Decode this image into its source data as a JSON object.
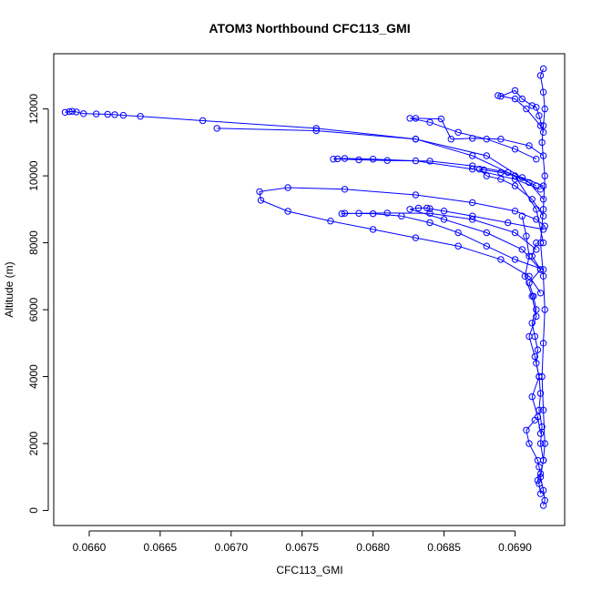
{
  "chart_data": {
    "type": "scatter",
    "title": "ATOM3 Northbound CFC113_GMI",
    "xlabel": "CFC113_GMI",
    "ylabel": "Altitude (m)",
    "xlim": [
      0.06575,
      0.06935
    ],
    "ylim": [
      -450,
      13650
    ],
    "x_ticks": [
      "0.0660",
      "0.0665",
      "0.0670",
      "0.0675",
      "0.0680",
      "0.0685",
      "0.0690"
    ],
    "y_ticks": [
      "0",
      "2000",
      "4000",
      "6000",
      "8000",
      "10000",
      "12000"
    ],
    "grid": false,
    "legend": "none",
    "color": "#0000ff",
    "marker": "open-circle",
    "connected": true,
    "series": [
      {
        "x": [
          0.06583,
          0.06586,
          0.06588,
          0.06591,
          0.06596,
          0.06605,
          0.06613,
          0.06618,
          0.06624,
          0.06636,
          0.0668,
          0.0676,
          0.0683,
          0.0687,
          0.069,
          0.06915,
          0.0692
        ],
        "y": [
          11900,
          11920,
          11930,
          11910,
          11860,
          11850,
          11840,
          11830,
          11810,
          11780,
          11650,
          11420,
          11100,
          10600,
          10000,
          9000,
          8000
        ]
      },
      {
        "x": [
          0.0692,
          0.0691,
          0.0688,
          0.0683,
          0.0676,
          0.0669
        ],
        "y": [
          9300,
          9800,
          10600,
          11100,
          11350,
          11420
        ]
      },
      {
        "x": [
          0.06921,
          0.06915,
          0.069,
          0.0687,
          0.0683,
          0.0678,
          0.0674,
          0.0672,
          0.06721,
          0.0674,
          0.0677,
          0.068,
          0.0683,
          0.0686,
          0.0689,
          0.0691,
          0.06918
        ],
        "y": [
          8500,
          8700,
          8950,
          9200,
          9430,
          9600,
          9650,
          9530,
          9270,
          8940,
          8650,
          8400,
          8150,
          7900,
          7500,
          7000,
          6500
        ]
      },
      {
        "x": [
          0.0692,
          0.069,
          0.0688,
          0.0686,
          0.0684,
          0.0682,
          0.068,
          0.0678,
          0.06778,
          0.0679,
          0.0681,
          0.0684,
          0.0687,
          0.069,
          0.06915
        ],
        "y": [
          7200,
          7500,
          7900,
          8300,
          8600,
          8800,
          8870,
          8880,
          8870,
          8880,
          8890,
          8880,
          8700,
          8300,
          7800
        ]
      },
      {
        "x": [
          0.0692,
          0.06895,
          0.0687,
          0.0685,
          0.0684,
          0.06838,
          0.06832,
          0.06826,
          0.0685,
          0.0688,
          0.06905,
          0.06918
        ],
        "y": [
          8400,
          8600,
          8800,
          8950,
          9020,
          9040,
          9040,
          9000,
          8700,
          8300,
          7800,
          7200
        ]
      },
      {
        "x": [
          0.06918,
          0.069,
          0.0687,
          0.0683,
          0.068,
          0.0678,
          0.06772,
          0.06775,
          0.0679,
          0.0681,
          0.0684,
          0.0687,
          0.06895,
          0.06915
        ],
        "y": [
          9600,
          9900,
          10200,
          10450,
          10500,
          10520,
          10500,
          10510,
          10480,
          10460,
          10440,
          10300,
          10100,
          9700
        ]
      },
      {
        "x": [
          0.0692,
          0.0691,
          0.0689,
          0.0687,
          0.06855,
          0.06848,
          0.0683,
          0.06826,
          0.0684,
          0.0686,
          0.0688,
          0.069,
          0.06915
        ],
        "y": [
          10600,
          10900,
          11100,
          11120,
          11100,
          11700,
          11720,
          11720,
          11600,
          11300,
          11100,
          10800,
          10500
        ]
      },
      {
        "x": [
          0.0692,
          0.06905,
          0.0689,
          0.06878,
          0.06875,
          0.0688,
          0.0689,
          0.069,
          0.06912,
          0.0692
        ],
        "y": [
          9700,
          9950,
          10100,
          10180,
          10200,
          10000,
          9900,
          9700,
          9300,
          8800
        ]
      },
      {
        "x": [
          0.06918,
          0.06908,
          0.069,
          0.06888,
          0.0689,
          0.069,
          0.06905,
          0.06912,
          0.06915,
          0.06917,
          0.0692
        ],
        "y": [
          11500,
          12000,
          12300,
          12400,
          12380,
          12550,
          12300,
          12100,
          12050,
          11800,
          11300
        ]
      },
      {
        "x": [
          0.0692,
          0.06918,
          0.0692,
          0.06921,
          0.0692,
          0.06919,
          0.06921,
          0.0692,
          0.06918,
          0.0692,
          0.06921,
          0.0692,
          0.06919,
          0.0692,
          0.06921,
          0.0692,
          0.06918,
          0.0692,
          0.06921,
          0.0692
        ],
        "y": [
          13200,
          13000,
          12500,
          12000,
          11500,
          11000,
          10000,
          9000,
          8000,
          7000,
          6000,
          5000,
          4000,
          3000,
          2000,
          1500,
          1000,
          600,
          300,
          150
        ]
      },
      {
        "x": [
          0.06915,
          0.06912,
          0.06918,
          0.0691,
          0.06913,
          0.06915,
          0.06912,
          0.06914,
          0.06916,
          0.06915,
          0.06917,
          0.06918,
          0.06917,
          0.06919,
          0.06918,
          0.0692
        ],
        "y": [
          8000,
          7600,
          7200,
          6800,
          6400,
          6000,
          5600,
          5200,
          4800,
          4400,
          4000,
          3500,
          3000,
          2500,
          2000,
          1500
        ]
      },
      {
        "x": [
          0.06905,
          0.06908,
          0.0691,
          0.06907,
          0.06912,
          0.06915,
          0.0691,
          0.06914,
          0.06917,
          0.06912,
          0.06916,
          0.06918
        ],
        "y": [
          8800,
          8200,
          7600,
          7000,
          6400,
          5800,
          5200,
          4600,
          4000,
          3400,
          2800,
          2300
        ]
      },
      {
        "x": [
          0.06914,
          0.06908,
          0.0691,
          0.06916,
          0.06917,
          0.06918,
          0.06916,
          0.06917,
          0.06918
        ],
        "y": [
          2700,
          2400,
          2000,
          1500,
          1300,
          1100,
          900,
          800,
          500
        ]
      }
    ]
  }
}
